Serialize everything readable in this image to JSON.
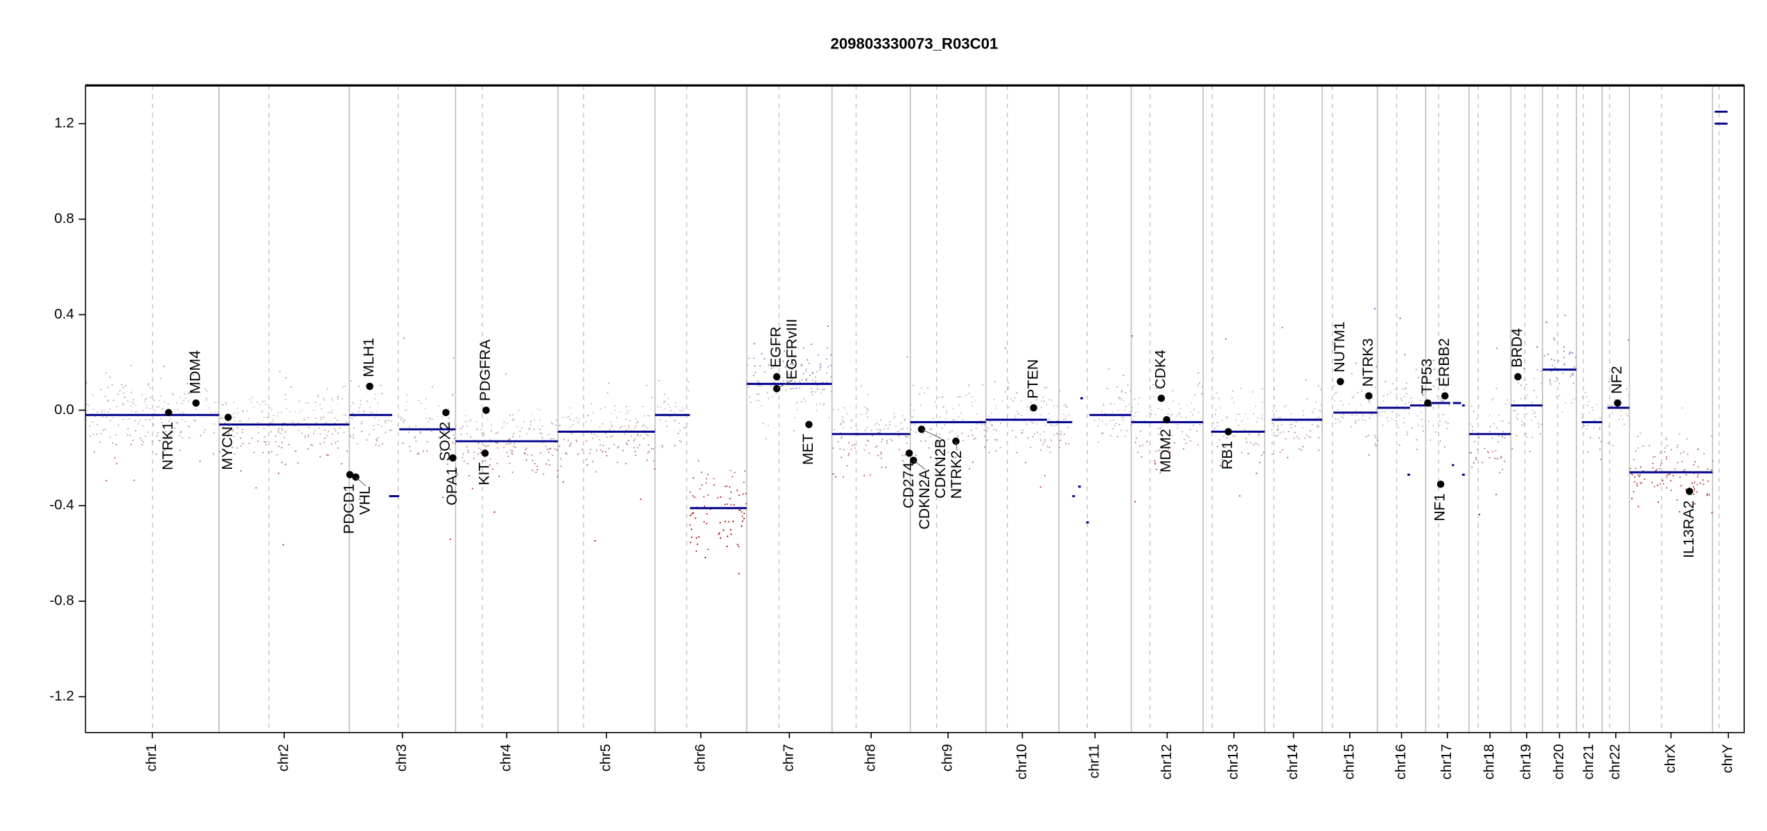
{
  "chart_data": {
    "type": "scatter",
    "title": "209803330073_R03C01",
    "xlabel": "",
    "ylabel": "",
    "ylim": [
      -1.35,
      1.36
    ],
    "yticks": [
      "-1.2",
      "-0.8",
      "-0.4",
      "0.0",
      "0.4",
      "0.8",
      "1.2"
    ],
    "ytick_values": [
      -1.2,
      -0.8,
      -0.4,
      0.0,
      0.4,
      0.8,
      1.2
    ],
    "x_unit": "Mb (genome-wide cumulative)",
    "chromosomes": [
      {
        "name": "chr1",
        "start": 0,
        "length": 249,
        "centromere": 125
      },
      {
        "name": "chr2",
        "start": 249,
        "length": 243,
        "centromere": 93
      },
      {
        "name": "chr3",
        "start": 492,
        "length": 198,
        "centromere": 91
      },
      {
        "name": "chr4",
        "start": 690,
        "length": 191,
        "centromere": 50
      },
      {
        "name": "chr5",
        "start": 881,
        "length": 181,
        "centromere": 48
      },
      {
        "name": "chr6",
        "start": 1062,
        "length": 171,
        "centromere": 59
      },
      {
        "name": "chr7",
        "start": 1233,
        "length": 159,
        "centromere": 60
      },
      {
        "name": "chr8",
        "start": 1392,
        "length": 146,
        "centromere": 45
      },
      {
        "name": "chr9",
        "start": 1538,
        "length": 141,
        "centromere": 49
      },
      {
        "name": "chr10",
        "start": 1679,
        "length": 136,
        "centromere": 40
      },
      {
        "name": "chr11",
        "start": 1815,
        "length": 135,
        "centromere": 53
      },
      {
        "name": "chr12",
        "start": 1950,
        "length": 134,
        "centromere": 35
      },
      {
        "name": "chr13",
        "start": 2084,
        "length": 115,
        "centromere": 17
      },
      {
        "name": "chr14",
        "start": 2199,
        "length": 107,
        "centromere": 17
      },
      {
        "name": "chr15",
        "start": 2306,
        "length": 103,
        "centromere": 19
      },
      {
        "name": "chr16",
        "start": 2409,
        "length": 90,
        "centromere": 36
      },
      {
        "name": "chr17",
        "start": 2499,
        "length": 81,
        "centromere": 24
      },
      {
        "name": "chr18",
        "start": 2580,
        "length": 78,
        "centromere": 17
      },
      {
        "name": "chr19",
        "start": 2658,
        "length": 59,
        "centromere": 26
      },
      {
        "name": "chr20",
        "start": 2717,
        "length": 63,
        "centromere": 28
      },
      {
        "name": "chr21",
        "start": 2780,
        "length": 48,
        "centromere": 13
      },
      {
        "name": "chr22",
        "start": 2828,
        "length": 51,
        "centromere": 14
      },
      {
        "name": "chrX",
        "start": 2879,
        "length": 155,
        "centromere": 60
      },
      {
        "name": "chrY",
        "start": 3034,
        "length": 59,
        "centromere": 12
      }
    ],
    "genome_length": 3093,
    "segments": [
      {
        "start": 0,
        "end": 249,
        "value": -0.02
      },
      {
        "start": 249,
        "end": 492,
        "value": -0.06
      },
      {
        "start": 492,
        "end": 572,
        "value": -0.02
      },
      {
        "start": 566,
        "end": 585,
        "value": -0.36
      },
      {
        "start": 585,
        "end": 690,
        "value": -0.08
      },
      {
        "start": 690,
        "end": 881,
        "value": -0.13
      },
      {
        "start": 881,
        "end": 1062,
        "value": -0.09
      },
      {
        "start": 1062,
        "end": 1127,
        "value": -0.02
      },
      {
        "start": 1127,
        "end": 1233,
        "value": -0.41
      },
      {
        "start": 1233,
        "end": 1392,
        "value": 0.11
      },
      {
        "start": 1392,
        "end": 1538,
        "value": -0.1
      },
      {
        "start": 1538,
        "end": 1679,
        "value": -0.05
      },
      {
        "start": 1679,
        "end": 1793,
        "value": -0.04
      },
      {
        "start": 1793,
        "end": 1840,
        "value": -0.05
      },
      {
        "start": 1840,
        "end": 1845,
        "value": -0.36
      },
      {
        "start": 1851,
        "end": 1856,
        "value": -0.32
      },
      {
        "start": 1855,
        "end": 1860,
        "value": 0.05
      },
      {
        "start": 1866,
        "end": 1871,
        "value": -0.47
      },
      {
        "start": 1872,
        "end": 1950,
        "value": -0.02
      },
      {
        "start": 1950,
        "end": 2084,
        "value": -0.05
      },
      {
        "start": 2099,
        "end": 2199,
        "value": -0.09
      },
      {
        "start": 2212,
        "end": 2306,
        "value": -0.04
      },
      {
        "start": 2327,
        "end": 2409,
        "value": -0.01
      },
      {
        "start": 2409,
        "end": 2470,
        "value": 0.01
      },
      {
        "start": 2465,
        "end": 2470,
        "value": -0.27
      },
      {
        "start": 2470,
        "end": 2510,
        "value": 0.02
      },
      {
        "start": 2510,
        "end": 2545,
        "value": 0.03
      },
      {
        "start": 2548,
        "end": 2552,
        "value": -0.23
      },
      {
        "start": 2550,
        "end": 2565,
        "value": 0.03
      },
      {
        "start": 2567,
        "end": 2572,
        "value": 0.02
      },
      {
        "start": 2567,
        "end": 2572,
        "value": -0.27
      },
      {
        "start": 2580,
        "end": 2658,
        "value": -0.1
      },
      {
        "start": 2658,
        "end": 2717,
        "value": 0.02
      },
      {
        "start": 2717,
        "end": 2780,
        "value": 0.17
      },
      {
        "start": 2790,
        "end": 2828,
        "value": -0.05
      },
      {
        "start": 2838,
        "end": 2879,
        "value": 0.01
      },
      {
        "start": 2879,
        "end": 3034,
        "value": -0.26
      },
      {
        "start": 3038,
        "end": 3062,
        "value": 1.2
      },
      {
        "start": 3038,
        "end": 3062,
        "value": 1.25
      }
    ],
    "genes": [
      {
        "name": "NTRK1",
        "pos": 155,
        "value": -0.01,
        "label_pos": "below"
      },
      {
        "name": "MDM4",
        "pos": 206,
        "value": 0.03,
        "label_pos": "above"
      },
      {
        "name": "MYCN",
        "pos": 266,
        "value": -0.03,
        "label_pos": "below"
      },
      {
        "name": "PDCD1",
        "pos": 493,
        "value": -0.27,
        "label_pos": "below"
      },
      {
        "name": "VHL",
        "pos": 504,
        "value": -0.28,
        "label_pos": "below"
      },
      {
        "name": "MLH1",
        "pos": 530,
        "value": 0.1,
        "label_pos": "above"
      },
      {
        "name": "SOX2",
        "pos": 672,
        "value": -0.01,
        "label_pos": "below"
      },
      {
        "name": "OPA1",
        "pos": 685,
        "value": -0.2,
        "label_pos": "below"
      },
      {
        "name": "PDGFRA",
        "pos": 747,
        "value": 0.0,
        "label_pos": "above"
      },
      {
        "name": "KIT",
        "pos": 745,
        "value": -0.18,
        "label_pos": "below"
      },
      {
        "name": "EGFR",
        "pos": 1289,
        "value": 0.14,
        "label_pos": "above"
      },
      {
        "name": "EGFRvIII",
        "pos": 1289,
        "value": 0.09,
        "label_pos": "above"
      },
      {
        "name": "MET",
        "pos": 1349,
        "value": -0.06,
        "label_pos": "below"
      },
      {
        "name": "CD274",
        "pos": 1536,
        "value": -0.18,
        "label_pos": "below"
      },
      {
        "name": "CDKN2A",
        "pos": 1544,
        "value": -0.21,
        "label_pos": "below"
      },
      {
        "name": "CDKN2B",
        "pos": 1559,
        "value": -0.08,
        "label_pos": "below"
      },
      {
        "name": "NTRK2",
        "pos": 1623,
        "value": -0.13,
        "label_pos": "below"
      },
      {
        "name": "PTEN",
        "pos": 1768,
        "value": 0.01,
        "label_pos": "above"
      },
      {
        "name": "CDK4",
        "pos": 2006,
        "value": 0.05,
        "label_pos": "above"
      },
      {
        "name": "MDM2",
        "pos": 2016,
        "value": -0.04,
        "label_pos": "below"
      },
      {
        "name": "RB1",
        "pos": 2131,
        "value": -0.09,
        "label_pos": "below"
      },
      {
        "name": "NUTM1",
        "pos": 2340,
        "value": 0.12,
        "label_pos": "above"
      },
      {
        "name": "NTRK3",
        "pos": 2393,
        "value": 0.06,
        "label_pos": "above"
      },
      {
        "name": "TP53",
        "pos": 2503,
        "value": 0.03,
        "label_pos": "above"
      },
      {
        "name": "ERBB2",
        "pos": 2535,
        "value": 0.06,
        "label_pos": "above"
      },
      {
        "name": "NF1",
        "pos": 2527,
        "value": -0.31,
        "label_pos": "below"
      },
      {
        "name": "BRD4",
        "pos": 2671,
        "value": 0.14,
        "label_pos": "above"
      },
      {
        "name": "NF2",
        "pos": 2857,
        "value": 0.03,
        "label_pos": "above"
      },
      {
        "name": "IL13RA2",
        "pos": 2991,
        "value": -0.34,
        "label_pos": "below"
      }
    ],
    "probe_noise_sd": 0.15,
    "colors": {
      "segment": "#00008b",
      "gain": "#3a3aa8",
      "neutral": "#c8c8c8",
      "loss": "#a00000",
      "chrom_line": "#bebebe",
      "gene_dot": "#000000"
    },
    "grid": false,
    "legend": "none"
  }
}
